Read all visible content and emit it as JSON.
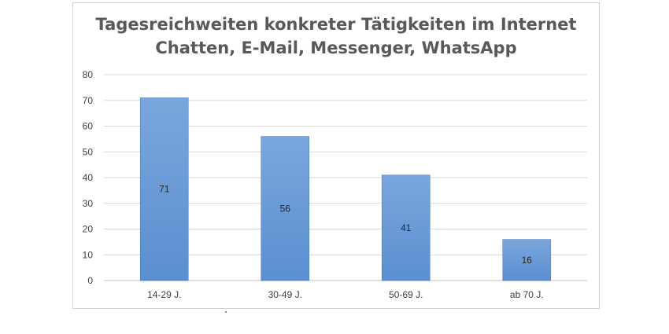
{
  "chart_data": {
    "type": "bar",
    "title": "Tagesreichweiten konkreter Tätigkeiten im Internet",
    "subtitle": "Chatten, E-Mail, Messenger, WhatsApp",
    "categories": [
      "14-29 J.",
      "30-49 J.",
      "50-69 J.",
      "ab 70 J."
    ],
    "values": [
      71,
      56,
      41,
      16
    ],
    "xlabel": "",
    "ylabel": "",
    "ylim": [
      0,
      80
    ],
    "yticks": [
      0,
      10,
      20,
      30,
      40,
      50,
      60,
      70,
      80
    ],
    "grid": true,
    "legend": "none",
    "data_labels": true,
    "bar_color": "#5b8fd0",
    "bar_color_light": "#7aa6dd"
  }
}
